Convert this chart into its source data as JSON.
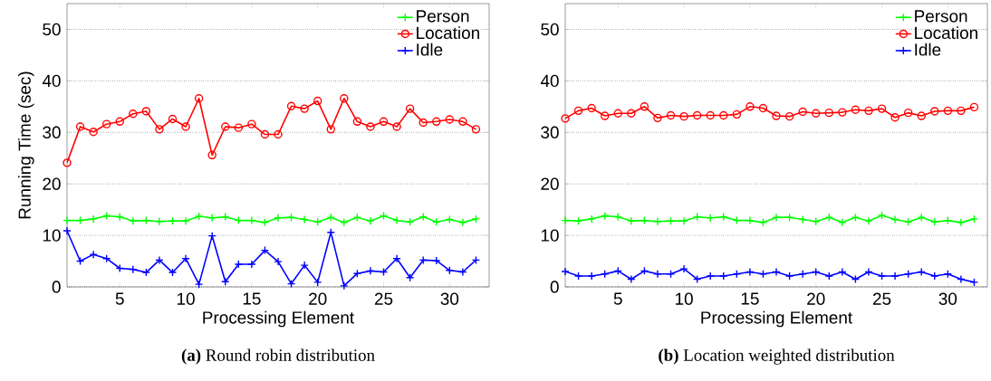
{
  "chart_data": [
    {
      "type": "line",
      "title": "**(a)** Round robin distribution",
      "xlabel": "Processing Element",
      "ylabel": "Running Time (sec)",
      "x": [
        1,
        2,
        3,
        4,
        5,
        6,
        7,
        8,
        9,
        10,
        11,
        12,
        13,
        14,
        15,
        16,
        17,
        18,
        19,
        20,
        21,
        22,
        23,
        24,
        25,
        26,
        27,
        28,
        29,
        30,
        31,
        32
      ],
      "xlim": [
        1,
        33
      ],
      "xticks": [
        5,
        10,
        15,
        20,
        25,
        30
      ],
      "ylim": [
        0,
        55
      ],
      "yticks": [
        0,
        10,
        20,
        30,
        40,
        50
      ],
      "grid": "y",
      "legend": "top right",
      "line_style": "solid",
      "series": [
        {
          "name": "Person",
          "color": "#00ff00",
          "marker": "cross",
          "values": [
            12.9,
            12.9,
            13.2,
            13.8,
            13.6,
            12.8,
            12.9,
            12.7,
            12.8,
            12.8,
            13.7,
            13.4,
            13.6,
            12.9,
            12.9,
            12.5,
            13.4,
            13.5,
            13.1,
            12.6,
            13.5,
            12.5,
            13.5,
            12.8,
            13.8,
            12.9,
            12.6,
            13.6,
            12.6,
            13.1,
            12.5,
            13.2
          ]
        },
        {
          "name": "Location",
          "color": "#ff0000",
          "marker": "circle",
          "values": [
            24.1,
            31.1,
            30.1,
            31.6,
            32.1,
            33.6,
            34.1,
            30.6,
            32.6,
            31.1,
            36.6,
            25.6,
            31.1,
            30.9,
            31.6,
            29.6,
            29.6,
            35.1,
            34.6,
            36.1,
            30.6,
            36.6,
            32.1,
            31.1,
            32.1,
            31.1,
            34.6,
            31.9,
            32.1,
            32.5,
            32.1,
            30.6
          ]
        },
        {
          "name": "Idle",
          "color": "#0000ff",
          "marker": "cross",
          "values": [
            10.9,
            5.0,
            6.3,
            5.5,
            3.6,
            3.4,
            2.8,
            5.2,
            2.8,
            5.5,
            0.5,
            9.9,
            1.0,
            4.4,
            4.4,
            7.1,
            4.9,
            0.6,
            4.2,
            0.9,
            10.6,
            0.2,
            2.6,
            3.1,
            2.9,
            5.5,
            1.8,
            5.2,
            5.1,
            3.2,
            2.9,
            5.2
          ]
        }
      ]
    },
    {
      "type": "line",
      "title": "**(b)** Location weighted distribution",
      "xlabel": "Processing Element",
      "x": [
        1,
        2,
        3,
        4,
        5,
        6,
        7,
        8,
        9,
        10,
        11,
        12,
        13,
        14,
        15,
        16,
        17,
        18,
        19,
        20,
        21,
        22,
        23,
        24,
        25,
        26,
        27,
        28,
        29,
        30,
        31,
        32
      ],
      "xlim": [
        1,
        33
      ],
      "xticks": [
        5,
        10,
        15,
        20,
        25,
        30
      ],
      "ylim": [
        0,
        55
      ],
      "yticks": [
        0,
        10,
        20,
        30,
        40,
        50
      ],
      "grid": "y",
      "legend": "top right",
      "line_style": "solid",
      "series": [
        {
          "name": "Person",
          "color": "#00ff00",
          "marker": "cross",
          "values": [
            12.9,
            12.8,
            13.2,
            13.8,
            13.6,
            12.8,
            12.9,
            12.7,
            12.8,
            12.8,
            13.6,
            13.4,
            13.6,
            12.9,
            12.9,
            12.5,
            13.5,
            13.5,
            13.1,
            12.7,
            13.5,
            12.5,
            13.5,
            12.8,
            13.9,
            13.1,
            12.6,
            13.5,
            12.6,
            12.9,
            12.5,
            13.2
          ]
        },
        {
          "name": "Location",
          "color": "#ff0000",
          "marker": "circle",
          "values": [
            32.7,
            34.2,
            34.7,
            33.2,
            33.7,
            33.7,
            35.0,
            32.8,
            33.3,
            33.1,
            33.3,
            33.3,
            33.3,
            33.5,
            35.0,
            34.7,
            33.2,
            33.1,
            34.0,
            33.7,
            33.8,
            33.9,
            34.4,
            34.2,
            34.6,
            32.9,
            33.8,
            33.2,
            34.1,
            34.2,
            34.2,
            34.9
          ]
        },
        {
          "name": "Idle",
          "color": "#0000ff",
          "marker": "cross",
          "values": [
            3.0,
            2.1,
            2.1,
            2.5,
            3.1,
            1.5,
            3.1,
            2.5,
            2.5,
            3.5,
            1.5,
            2.1,
            2.1,
            2.5,
            2.9,
            2.5,
            2.9,
            2.1,
            2.5,
            2.9,
            2.1,
            2.9,
            1.5,
            2.9,
            2.1,
            2.1,
            2.5,
            2.9,
            2.1,
            2.5,
            1.5,
            0.9
          ]
        }
      ]
    }
  ]
}
